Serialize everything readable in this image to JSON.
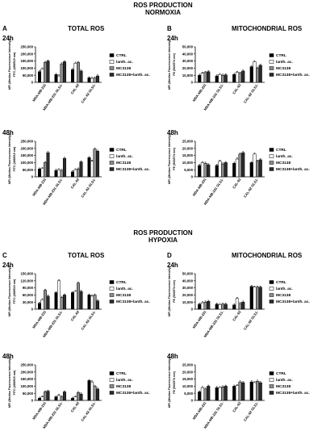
{
  "figure": {
    "normoxia": {
      "title_line1": "ROS PRODUCTION",
      "title_line2": "NORMOXIA",
      "left_letter": "A",
      "left_title": "TOTAL ROS",
      "right_letter": "B",
      "right_title": "MITOCHONDRIAL ROS"
    },
    "hypoxia": {
      "title_line1": "ROS PRODUCTION",
      "title_line2": "HYPOXIA",
      "left_letter": "C",
      "left_title": "TOTAL ROS",
      "right_letter": "D",
      "right_title": "MITOCHONDRIAL ROS"
    },
    "time_24": "24h",
    "time_48": "48h"
  },
  "colors": {
    "CTRL": "#000000",
    "lanth. ac.": "#ffffff",
    "MC3138": "#8c8c8c",
    "MC3138+lanth. ac.": "#2b2b2b"
  },
  "chart_data": [
    {
      "id": "A24",
      "type": "bar",
      "ylabel_1": "MFI (Median Fluorescence Intensity)",
      "ylabel_2": "FITC (488/519 nm)",
      "categories": [
        "MDA-MB-231",
        "MDA-MB-231 GLS1-",
        "CAL-62",
        "CAL-62 GLS1-"
      ],
      "yticks": [
        "0",
        "50,000",
        "100,000",
        "150,000",
        "200,000",
        "250,000"
      ],
      "ylim": [
        0,
        250000
      ],
      "series": [
        {
          "name": "CTRL",
          "values": [
            75000,
            55000,
            90000,
            32000
          ]
        },
        {
          "name": "lanth. ac.",
          "values": [
            95000,
            45000,
            135000,
            28000
          ]
        },
        {
          "name": "MC3138",
          "values": [
            140000,
            130000,
            140000,
            30000
          ]
        },
        {
          "name": "MC3138+lanth. ac.",
          "values": [
            150000,
            145000,
            80000,
            45000
          ]
        }
      ]
    },
    {
      "id": "B24",
      "type": "bar",
      "ylabel_1": "MFI (Median Fluorescence Intensity)",
      "ylabel_2": "PE (566/574 nm)",
      "categories": [
        "MDA-MB-231",
        "MDA-MB-231 GLS1-",
        "CAL-62",
        "CAL-62 GLS1-"
      ],
      "yticks": [
        "0",
        "10,000",
        "20,000",
        "30,000",
        "40,000",
        "50,000"
      ],
      "ylim": [
        0,
        50000
      ],
      "series": [
        {
          "name": "CTRL",
          "values": [
            10000,
            9000,
            11000,
            22000
          ]
        },
        {
          "name": "lanth. ac.",
          "values": [
            13000,
            11000,
            14000,
            29000
          ]
        },
        {
          "name": "MC3138",
          "values": [
            14000,
            10000,
            13000,
            20000
          ]
        },
        {
          "name": "MC3138+lanth. ac.",
          "values": [
            15000,
            10500,
            16000,
            24000
          ]
        }
      ]
    },
    {
      "id": "A48",
      "type": "bar",
      "ylabel_1": "MFI (Median Fluorescence Intensity)",
      "ylabel_2": "FITC (488/519 nm)",
      "categories": [
        "MDA-MB-231",
        "MDA-MB-231 GLS1-",
        "CAL-62",
        "CAL-62 GLS1-"
      ],
      "yticks": [
        "0",
        "50,000",
        "100,000",
        "150,000",
        "200,000",
        "250,000"
      ],
      "ylim": [
        0,
        250000
      ],
      "series": [
        {
          "name": "CTRL",
          "values": [
            55000,
            45000,
            35000,
            135000
          ]
        },
        {
          "name": "lanth. ac.",
          "values": [
            60000,
            50000,
            50000,
            110000
          ]
        },
        {
          "name": "MC3138",
          "values": [
            100000,
            45000,
            55000,
            195000
          ]
        },
        {
          "name": "MC3138+lanth. ac.",
          "values": [
            170000,
            130000,
            105000,
            180000
          ]
        }
      ]
    },
    {
      "id": "B48",
      "type": "bar",
      "ylabel_1": "MFI (Median Fluorescence Intensity)",
      "ylabel_2": "PE (566/574 nm)",
      "categories": [
        "MDA-MB-231",
        "MDA-MB-231 GLS1-",
        "CAL-62",
        "CAL-62 GLS1-"
      ],
      "yticks": [
        "0",
        "5,000",
        "10,000",
        "15,000",
        "20,000",
        "25,000"
      ],
      "ylim": [
        0,
        25000
      ],
      "series": [
        {
          "name": "CTRL",
          "values": [
            8000,
            8000,
            9500,
            10000
          ]
        },
        {
          "name": "lanth. ac.",
          "values": [
            10000,
            11000,
            12500,
            16000
          ]
        },
        {
          "name": "MC3138",
          "values": [
            9500,
            9000,
            16000,
            11000
          ]
        },
        {
          "name": "MC3138+lanth. ac.",
          "values": [
            8500,
            10000,
            17000,
            12000
          ]
        }
      ]
    },
    {
      "id": "C24",
      "type": "bar",
      "ylabel_1": "MFI (Median Fluorescence Intensity)",
      "ylabel_2": "FITC (488/519 nm)",
      "categories": [
        "MDA-MB-231",
        "MDA-MB-231 GLS1-",
        "CAL-62",
        "CAL-62 GLS1-"
      ],
      "yticks": [
        "0",
        "30,000",
        "60,000",
        "90,000",
        "120,000",
        "150,000"
      ],
      "ylim": [
        0,
        150000
      ],
      "series": [
        {
          "name": "CTRL",
          "values": [
            25000,
            70000,
            70000,
            60000
          ]
        },
        {
          "name": "lanth. ac.",
          "values": [
            40000,
            120000,
            75000,
            55000
          ]
        },
        {
          "name": "MC3138",
          "values": [
            80000,
            50000,
            110000,
            60000
          ]
        },
        {
          "name": "MC3138+lanth. ac.",
          "values": [
            55000,
            60000,
            75000,
            35000
          ]
        }
      ]
    },
    {
      "id": "D24",
      "type": "bar",
      "ylabel_1": "MFI (Median Fluorescence Intensity)",
      "ylabel_2": "PE (566/574 nm)",
      "categories": [
        "MDA-MB-231",
        "MDA-MB-231 GLS1-",
        "CAL-62",
        "CAL-62 GLS1-"
      ],
      "yticks": [
        "0",
        "10,000",
        "20,000",
        "30,000",
        "40,000",
        "50,000"
      ],
      "ylim": [
        0,
        50000
      ],
      "series": [
        {
          "name": "CTRL",
          "values": [
            7000,
            7000,
            6000,
            32000
          ]
        },
        {
          "name": "lanth. ac.",
          "values": [
            9000,
            6500,
            15000,
            31000
          ]
        },
        {
          "name": "MC3138",
          "values": [
            10000,
            7000,
            8000,
            31000
          ]
        },
        {
          "name": "MC3138+lanth. ac.",
          "values": [
            11000,
            7000,
            10000,
            31000
          ]
        }
      ]
    },
    {
      "id": "C48",
      "type": "bar",
      "ylabel_1": "MFI (Median Fluorescence Intensity)",
      "ylabel_2": "FITC (488/519 nm)",
      "categories": [
        "MDA-MB-231",
        "MDA-MB-231 GLS1-",
        "CAL-62",
        "CAL-62 GLS1-"
      ],
      "yticks": [
        "0",
        "50,000",
        "100,000",
        "150,000",
        "200,000",
        "250,000"
      ],
      "ylim": [
        0,
        250000
      ],
      "series": [
        {
          "name": "CTRL",
          "values": [
            15000,
            25000,
            15000,
            140000
          ]
        },
        {
          "name": "lanth. ac.",
          "values": [
            25000,
            35000,
            25000,
            130000
          ]
        },
        {
          "name": "MC3138",
          "values": [
            60000,
            25000,
            55000,
            100000
          ]
        },
        {
          "name": "MC3138+lanth. ac.",
          "values": [
            65000,
            60000,
            45000,
            80000
          ]
        }
      ]
    },
    {
      "id": "D48",
      "type": "bar",
      "ylabel_1": "MFI (Median Fluorescence Intensity)",
      "ylabel_2": "PE (566/574 nm)",
      "categories": [
        "MDA-MB-231",
        "MDA-MB-231 GLS1-",
        "CAL-62",
        "CAL-62 GLS1-"
      ],
      "yticks": [
        "0",
        "5,000",
        "10,000",
        "15,000",
        "20,000",
        "25,000"
      ],
      "ylim": [
        0,
        25000
      ],
      "series": [
        {
          "name": "CTRL",
          "values": [
            6000,
            9000,
            10000,
            13000
          ]
        },
        {
          "name": "lanth. ac.",
          "values": [
            9000,
            9000,
            10500,
            12500
          ]
        },
        {
          "name": "MC3138",
          "values": [
            8000,
            9500,
            13000,
            13500
          ]
        },
        {
          "name": "MC3138+lanth. ac.",
          "values": [
            10000,
            10000,
            12500,
            12500
          ]
        }
      ]
    }
  ]
}
